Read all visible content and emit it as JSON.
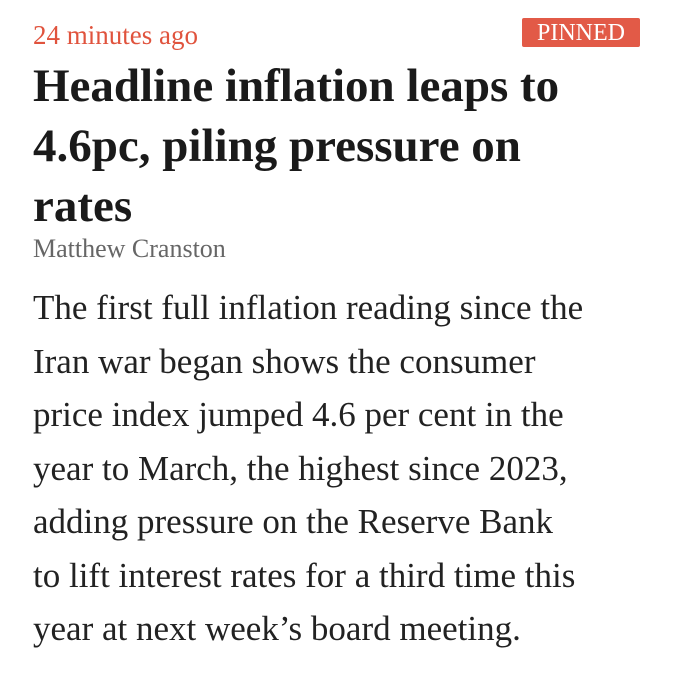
{
  "article": {
    "timestamp": "24 minutes ago",
    "badge": "PINNED",
    "headline_lines": [
      "Headline inflation leaps to",
      "4.6pc, piling pressure on",
      "rates"
    ],
    "author": "Matthew Cranston",
    "body_lines": [
      "The first full inflation reading since the",
      "Iran war began shows the consumer",
      "price index jumped 4.6 per cent in the",
      "year to March, the highest since 2023,",
      "adding pressure on the Reserve Bank",
      "to lift interest rates for a third time this",
      "year at next week’s board meeting."
    ]
  }
}
